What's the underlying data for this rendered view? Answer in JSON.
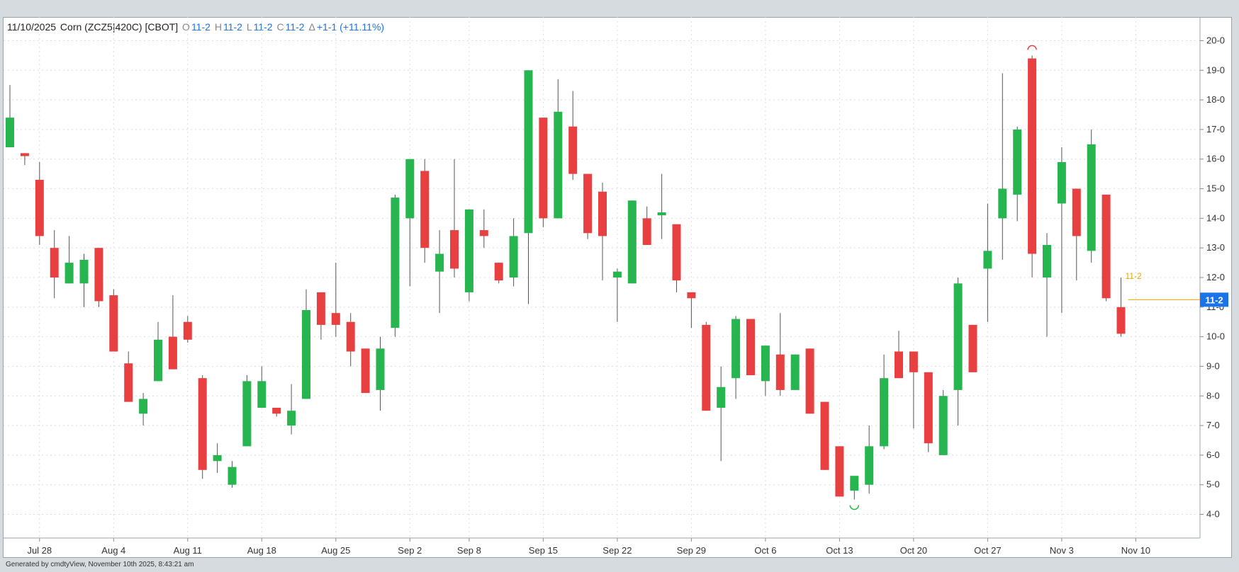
{
  "header": {
    "date": "11/10/2025",
    "instrument": "Corn (ZCZ5|420C) [CBOT]",
    "o_label": "O",
    "o_value": "11-2",
    "h_label": "H",
    "h_value": "11-2",
    "l_label": "L",
    "l_value": "11-2",
    "c_label": "C",
    "c_value": "11-2",
    "chg_label": "Δ",
    "chg_value": "+1-1 (+11.11%)"
  },
  "footer": "Generated by cmdtyView, November 10th 2025, 8:43:21 am",
  "colors": {
    "up": "#27b550",
    "down": "#e84040",
    "wick": "#555555",
    "last_price": "#1a73e8",
    "mark": "#f0a500"
  },
  "chart_data": {
    "type": "candlestick",
    "x_ticks": [
      "Jul 28",
      "Aug 4",
      "Aug 11",
      "Aug 18",
      "Aug 25",
      "Sep 2",
      "Sep 8",
      "Sep 15",
      "Sep 22",
      "Sep 29",
      "Oct 6",
      "Oct 13",
      "Oct 20",
      "Oct 27",
      "Nov 3",
      "Nov 10"
    ],
    "x_tick_index": [
      2,
      7,
      12,
      17,
      22,
      27,
      31,
      36,
      41,
      46,
      51,
      56,
      61,
      66,
      71,
      76
    ],
    "y_ticks": [
      "4-0",
      "5-0",
      "6-0",
      "7-0",
      "8-0",
      "9-0",
      "10-0",
      "11-0",
      "12-0",
      "13-0",
      "14-0",
      "15-0",
      "16-0",
      "17-0",
      "18-0",
      "19-0",
      "20-0"
    ],
    "y_tick_values": [
      4,
      5,
      6,
      7,
      8,
      9,
      10,
      11,
      12,
      13,
      14,
      15,
      16,
      17,
      18,
      19,
      20
    ],
    "ylim": [
      3.2,
      20.8
    ],
    "grid": true,
    "last_price_label": "11-2",
    "last_price": 11.25,
    "mark_label": "11-2",
    "high_marker_index": 69,
    "low_marker_index": 57,
    "candles": [
      [
        0,
        16.4,
        18.5,
        16.4,
        17.4
      ],
      [
        1,
        16.2,
        16.2,
        15.8,
        16.1
      ],
      [
        2,
        15.3,
        15.9,
        13.1,
        13.4
      ],
      [
        3,
        13.0,
        13.6,
        11.3,
        12.0
      ],
      [
        4,
        11.8,
        13.4,
        11.8,
        12.5
      ],
      [
        5,
        11.8,
        12.8,
        11.0,
        12.6
      ],
      [
        6,
        13.0,
        13.0,
        11.0,
        11.2
      ],
      [
        7,
        11.4,
        11.6,
        9.5,
        9.5
      ],
      [
        8,
        9.1,
        9.5,
        7.8,
        7.8
      ],
      [
        9,
        7.4,
        8.1,
        7.0,
        7.9
      ],
      [
        10,
        8.5,
        10.5,
        8.5,
        9.9
      ],
      [
        11,
        10.0,
        11.4,
        8.9,
        8.9
      ],
      [
        12,
        10.5,
        10.7,
        9.8,
        9.9
      ],
      [
        13,
        8.6,
        8.7,
        5.2,
        5.5
      ],
      [
        14,
        5.8,
        6.4,
        5.4,
        6.0
      ],
      [
        15,
        5.0,
        5.8,
        4.9,
        5.6
      ],
      [
        16,
        6.3,
        8.7,
        6.3,
        8.5
      ],
      [
        17,
        7.6,
        9.0,
        7.6,
        8.5
      ],
      [
        18,
        7.6,
        7.6,
        7.3,
        7.4
      ],
      [
        19,
        7.0,
        8.4,
        6.7,
        7.5
      ],
      [
        20,
        7.9,
        11.6,
        7.9,
        10.9
      ],
      [
        21,
        11.5,
        11.5,
        9.9,
        10.4
      ],
      [
        22,
        10.8,
        12.5,
        10.0,
        10.4
      ],
      [
        23,
        10.5,
        10.8,
        9.0,
        9.5
      ],
      [
        24,
        9.6,
        9.6,
        8.1,
        8.1
      ],
      [
        25,
        8.2,
        10.0,
        7.5,
        9.6
      ],
      [
        26,
        10.3,
        14.8,
        10.0,
        14.7
      ],
      [
        27,
        14.0,
        16.0,
        11.7,
        16.0
      ],
      [
        28,
        15.6,
        16.0,
        12.5,
        13.0
      ],
      [
        29,
        12.2,
        13.6,
        10.8,
        12.8
      ],
      [
        30,
        13.6,
        16.0,
        12.0,
        12.3
      ],
      [
        31,
        11.5,
        14.3,
        11.2,
        14.3
      ],
      [
        32,
        13.6,
        14.3,
        13.0,
        13.4
      ],
      [
        33,
        12.5,
        12.5,
        11.8,
        11.9
      ],
      [
        34,
        12.0,
        14.0,
        11.7,
        13.4
      ],
      [
        35,
        13.5,
        19.0,
        11.1,
        19.0
      ],
      [
        36,
        17.4,
        17.4,
        13.7,
        14.0
      ],
      [
        37,
        14.0,
        18.7,
        14.0,
        17.6
      ],
      [
        38,
        17.1,
        18.3,
        15.3,
        15.5
      ],
      [
        39,
        15.5,
        15.5,
        13.3,
        13.5
      ],
      [
        40,
        14.9,
        15.2,
        11.9,
        13.4
      ],
      [
        41,
        12.0,
        12.3,
        10.5,
        12.2
      ],
      [
        42,
        11.8,
        14.6,
        11.8,
        14.6
      ],
      [
        43,
        14.0,
        14.4,
        13.1,
        13.1
      ],
      [
        44,
        14.1,
        15.5,
        13.3,
        14.2
      ],
      [
        45,
        13.8,
        13.8,
        11.5,
        11.9
      ],
      [
        46,
        11.5,
        11.5,
        10.3,
        11.3
      ],
      [
        47,
        10.4,
        10.5,
        7.5,
        7.5
      ],
      [
        48,
        7.6,
        9.0,
        5.8,
        8.3
      ],
      [
        49,
        8.6,
        10.7,
        7.9,
        10.6
      ],
      [
        50,
        10.6,
        10.6,
        8.7,
        8.7
      ],
      [
        51,
        8.5,
        9.7,
        8.0,
        9.7
      ],
      [
        52,
        9.4,
        10.8,
        8.0,
        8.2
      ],
      [
        53,
        8.2,
        9.4,
        8.2,
        9.4
      ],
      [
        54,
        9.6,
        9.6,
        7.4,
        7.4
      ],
      [
        55,
        7.8,
        7.8,
        5.5,
        5.5
      ],
      [
        56,
        6.3,
        6.3,
        4.6,
        4.6
      ],
      [
        57,
        4.8,
        5.3,
        4.5,
        5.3
      ],
      [
        58,
        5.0,
        7.0,
        4.7,
        6.3
      ],
      [
        59,
        6.3,
        9.4,
        6.2,
        8.6
      ],
      [
        60,
        9.5,
        10.2,
        8.6,
        8.6
      ],
      [
        61,
        9.5,
        9.5,
        6.9,
        8.8
      ],
      [
        62,
        8.8,
        8.8,
        6.1,
        6.4
      ],
      [
        63,
        6.0,
        8.2,
        6.0,
        8.0
      ],
      [
        64,
        8.2,
        12.0,
        7.0,
        11.8
      ],
      [
        65,
        10.4,
        10.4,
        8.8,
        8.8
      ],
      [
        66,
        12.3,
        14.5,
        10.5,
        12.9
      ],
      [
        67,
        14.0,
        18.9,
        12.6,
        15.0
      ],
      [
        68,
        14.8,
        17.1,
        13.9,
        17.0
      ],
      [
        69,
        19.4,
        19.5,
        12.0,
        12.8
      ],
      [
        70,
        12.0,
        13.5,
        10.0,
        13.1
      ],
      [
        71,
        14.5,
        16.4,
        10.8,
        15.9
      ],
      [
        72,
        15.0,
        15.0,
        11.9,
        13.4
      ],
      [
        73,
        12.9,
        17.0,
        12.5,
        16.5
      ],
      [
        74,
        14.8,
        14.8,
        11.2,
        11.3
      ],
      [
        75,
        11.0,
        12.0,
        10.0,
        10.1
      ]
    ]
  }
}
